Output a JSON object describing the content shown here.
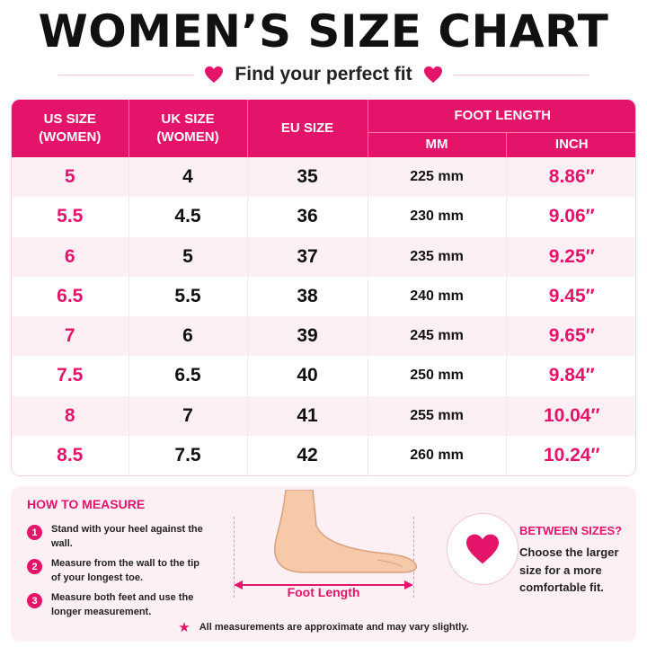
{
  "header": {
    "title": "WOMEN’S SIZE CHART",
    "subtitle": "Find your perfect fit",
    "heart_icon": "heart-icon"
  },
  "colors": {
    "accent": "#e4146b",
    "row_alt": "#fdf0f4",
    "text": "#151515"
  },
  "table": {
    "headers": {
      "us": "US SIZE\n(WOMEN)",
      "uk": "UK SIZE\n(WOMEN)",
      "eu": "EU SIZE",
      "foot_length": "FOOT LENGTH",
      "mm": "MM",
      "inch": "INCH"
    },
    "rows": [
      {
        "us": "5",
        "uk": "4",
        "eu": "35",
        "mm": "225 mm",
        "inch": "8.86″"
      },
      {
        "us": "5.5",
        "uk": "4.5",
        "eu": "36",
        "mm": "230 mm",
        "inch": "9.06″"
      },
      {
        "us": "6",
        "uk": "5",
        "eu": "37",
        "mm": "235 mm",
        "inch": "9.25″"
      },
      {
        "us": "6.5",
        "uk": "5.5",
        "eu": "38",
        "mm": "240 mm",
        "inch": "9.45″"
      },
      {
        "us": "7",
        "uk": "6",
        "eu": "39",
        "mm": "245 mm",
        "inch": "9.65″"
      },
      {
        "us": "7.5",
        "uk": "6.5",
        "eu": "40",
        "mm": "250 mm",
        "inch": "9.84″"
      },
      {
        "us": "8",
        "uk": "7",
        "eu": "41",
        "mm": "255 mm",
        "inch": "10.04″"
      },
      {
        "us": "8.5",
        "uk": "7.5",
        "eu": "42",
        "mm": "260 mm",
        "inch": "10.24″"
      }
    ]
  },
  "how_to_measure": {
    "title": "HOW TO MEASURE",
    "steps": [
      {
        "num": "1",
        "text": "Stand with your heel against the wall."
      },
      {
        "num": "2",
        "text": "Measure from the wall to the tip of your longest toe."
      },
      {
        "num": "3",
        "text": "Measure both feet and use the longer measurement."
      }
    ]
  },
  "illustration": {
    "foot_label": "Foot Length",
    "icon": "foot-icon"
  },
  "between_sizes": {
    "title": "BETWEEN SIZES?",
    "text": "Choose the larger size for a more comfortable fit.",
    "icon": "heart-icon"
  },
  "note": {
    "text": "All measurements are approximate and may vary slightly.",
    "icon": "star-icon"
  }
}
